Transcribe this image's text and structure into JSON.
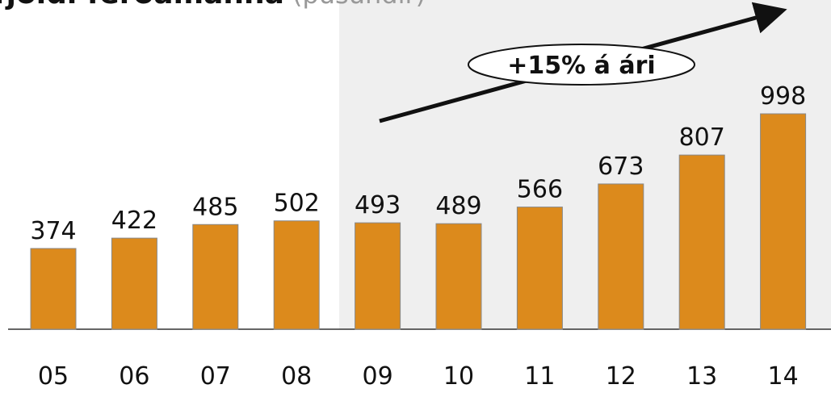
{
  "chart_data": {
    "type": "bar",
    "title": "fjöldi ferðamanna",
    "subtitle": "(þúsundir)",
    "annotation": "+15% á ári",
    "categories": [
      "05",
      "06",
      "07",
      "08",
      "09",
      "10",
      "11",
      "12",
      "13",
      "14"
    ],
    "values": [
      374,
      422,
      485,
      502,
      493,
      489,
      566,
      673,
      807,
      998
    ],
    "color": "#dc8a1c"
  }
}
